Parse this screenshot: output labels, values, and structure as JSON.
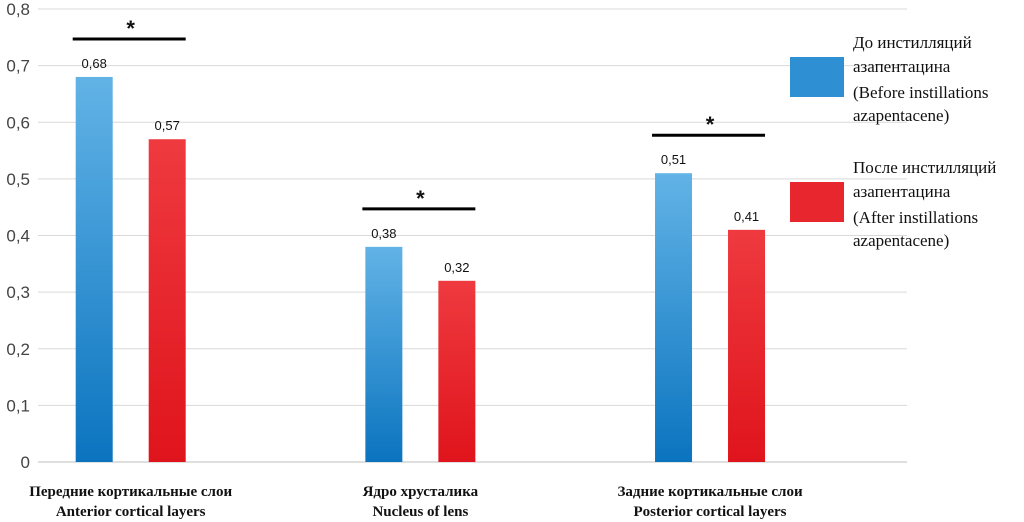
{
  "chart_data": {
    "type": "bar",
    "title": "",
    "xlabel": "",
    "ylabel": "",
    "ylim": [
      0,
      0.8
    ],
    "yticks": [
      "0",
      "0,1",
      "0,2",
      "0,3",
      "0,4",
      "0,5",
      "0,6",
      "0,7",
      "0,8"
    ],
    "grid": true,
    "legend_position": "right",
    "categories": [
      {
        "ru": "Передние кортикальные слои",
        "en": "Anterior cortical layers"
      },
      {
        "ru": "Ядро хрусталика",
        "en": "Nucleus of lens"
      },
      {
        "ru": "Задние кортикальные слои",
        "en": "Posterior cortical layers"
      }
    ],
    "series": [
      {
        "name_ru_1": "До инстилляций",
        "name_ru_2": "азапентацина",
        "name_en_1": "(Before instillations",
        "name_en_2": "azapentacene)",
        "color": "#2f8fd3",
        "values": [
          0.68,
          0.38,
          0.51
        ],
        "labels": [
          "0,68",
          "0,38",
          "0,51"
        ]
      },
      {
        "name_ru_1": "После инстилляций",
        "name_ru_2": "азапентацина",
        "name_en_1": "(After instillations",
        "name_en_2": "azapentacene)",
        "color": "#e8262d",
        "values": [
          0.57,
          0.32,
          0.41
        ],
        "labels": [
          "0,57",
          "0,32",
          "0,41"
        ]
      }
    ],
    "significance_marker": "*"
  }
}
